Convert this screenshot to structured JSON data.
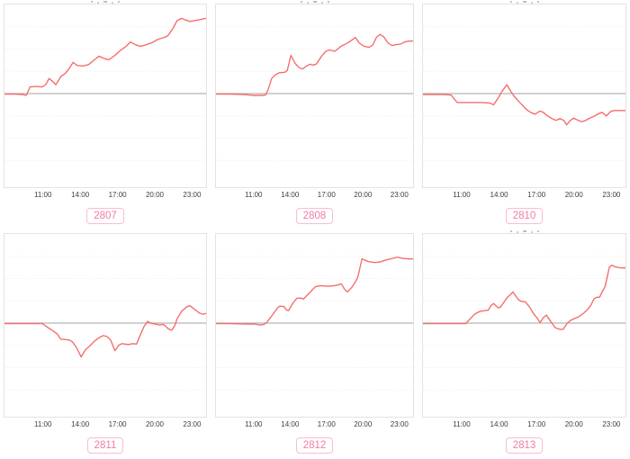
{
  "page": {
    "background": "#ffffff"
  },
  "style": {
    "line_color": "#f56d6d",
    "baseline_color": "#b3b3b3",
    "grid_color": "#ededed",
    "plot_border_color": "#e3e3e3",
    "badge_border_color": "#f9bcd4",
    "badge_text_color": "#ee7ca9",
    "tick_text_color": "#3e3e3e"
  },
  "axis": {
    "x_tick_labels": [
      "11:00",
      "14:00",
      "17:00",
      "20:00",
      "23:00"
    ],
    "x_tick_hours": [
      11,
      14,
      17,
      20,
      23
    ],
    "x_range": [
      7.83,
      24.2
    ],
    "y_range": [
      -10.5,
      10.5
    ],
    "baseline_value": 0,
    "grid_values": [
      7.5,
      5,
      2.5,
      -2.5,
      -5,
      -7.5
    ],
    "grid_visible": true
  },
  "chart_data": [
    {
      "type": "line",
      "id_label": "2807",
      "title_clipped": true,
      "points": [
        [
          7.83,
          -0.05
        ],
        [
          8.6,
          -0.05
        ],
        [
          9.3,
          -0.1
        ],
        [
          9.6,
          -0.2
        ],
        [
          9.9,
          0.75
        ],
        [
          10.4,
          0.8
        ],
        [
          10.9,
          0.75
        ],
        [
          11.2,
          1.05
        ],
        [
          11.45,
          1.7
        ],
        [
          11.75,
          1.35
        ],
        [
          12.0,
          1.0
        ],
        [
          12.4,
          1.9
        ],
        [
          12.75,
          2.25
        ],
        [
          13.05,
          2.75
        ],
        [
          13.4,
          3.5
        ],
        [
          13.75,
          3.15
        ],
        [
          14.2,
          3.1
        ],
        [
          14.65,
          3.25
        ],
        [
          15.1,
          3.75
        ],
        [
          15.5,
          4.2
        ],
        [
          15.9,
          3.95
        ],
        [
          16.3,
          3.8
        ],
        [
          16.8,
          4.3
        ],
        [
          17.25,
          4.85
        ],
        [
          17.7,
          5.3
        ],
        [
          18.05,
          5.8
        ],
        [
          18.45,
          5.5
        ],
        [
          18.85,
          5.3
        ],
        [
          19.25,
          5.45
        ],
        [
          19.8,
          5.7
        ],
        [
          20.3,
          6.1
        ],
        [
          20.8,
          6.3
        ],
        [
          21.1,
          6.5
        ],
        [
          21.5,
          7.3
        ],
        [
          21.85,
          8.2
        ],
        [
          22.2,
          8.45
        ],
        [
          22.55,
          8.25
        ],
        [
          22.9,
          8.1
        ],
        [
          23.3,
          8.2
        ],
        [
          23.7,
          8.3
        ],
        [
          24.2,
          8.45
        ]
      ]
    },
    {
      "type": "line",
      "id_label": "2808",
      "title_clipped": true,
      "points": [
        [
          7.83,
          -0.05
        ],
        [
          9.0,
          -0.05
        ],
        [
          10.2,
          -0.1
        ],
        [
          11.0,
          -0.2
        ],
        [
          11.6,
          -0.2
        ],
        [
          11.95,
          -0.15
        ],
        [
          12.15,
          0.4
        ],
        [
          12.45,
          1.7
        ],
        [
          12.75,
          2.1
        ],
        [
          13.1,
          2.35
        ],
        [
          13.55,
          2.4
        ],
        [
          13.75,
          2.6
        ],
        [
          14.05,
          4.3
        ],
        [
          14.4,
          3.4
        ],
        [
          14.7,
          2.95
        ],
        [
          15.0,
          2.75
        ],
        [
          15.35,
          3.1
        ],
        [
          15.65,
          3.3
        ],
        [
          15.9,
          3.2
        ],
        [
          16.15,
          3.3
        ],
        [
          16.6,
          4.2
        ],
        [
          16.95,
          4.75
        ],
        [
          17.25,
          4.9
        ],
        [
          17.7,
          4.75
        ],
        [
          18.2,
          5.3
        ],
        [
          18.65,
          5.6
        ],
        [
          19.0,
          5.9
        ],
        [
          19.4,
          6.3
        ],
        [
          19.75,
          5.65
        ],
        [
          20.15,
          5.3
        ],
        [
          20.55,
          5.2
        ],
        [
          20.85,
          5.45
        ],
        [
          21.15,
          6.3
        ],
        [
          21.45,
          6.65
        ],
        [
          21.75,
          6.4
        ],
        [
          22.1,
          5.7
        ],
        [
          22.45,
          5.4
        ],
        [
          22.8,
          5.5
        ],
        [
          23.15,
          5.55
        ],
        [
          23.5,
          5.8
        ],
        [
          23.9,
          5.9
        ],
        [
          24.2,
          5.9
        ]
      ]
    },
    {
      "type": "line",
      "id_label": "2810",
      "title_clipped": true,
      "points": [
        [
          7.83,
          -0.1
        ],
        [
          9.5,
          -0.1
        ],
        [
          10.1,
          -0.15
        ],
        [
          10.35,
          -0.6
        ],
        [
          10.6,
          -1.0
        ],
        [
          11.5,
          -1.0
        ],
        [
          12.6,
          -1.0
        ],
        [
          13.2,
          -1.05
        ],
        [
          13.55,
          -1.25
        ],
        [
          13.9,
          -0.5
        ],
        [
          14.2,
          0.2
        ],
        [
          14.6,
          1.0
        ],
        [
          14.95,
          0.2
        ],
        [
          15.2,
          -0.3
        ],
        [
          15.55,
          -0.85
        ],
        [
          15.9,
          -1.35
        ],
        [
          16.25,
          -1.85
        ],
        [
          16.6,
          -2.15
        ],
        [
          16.9,
          -2.3
        ],
        [
          17.3,
          -1.95
        ],
        [
          17.55,
          -2.1
        ],
        [
          17.9,
          -2.5
        ],
        [
          18.25,
          -2.8
        ],
        [
          18.6,
          -3.0
        ],
        [
          18.9,
          -2.8
        ],
        [
          19.2,
          -3.0
        ],
        [
          19.45,
          -3.5
        ],
        [
          19.75,
          -3.0
        ],
        [
          20.0,
          -2.75
        ],
        [
          20.3,
          -2.95
        ],
        [
          20.65,
          -3.15
        ],
        [
          21.0,
          -3.0
        ],
        [
          21.3,
          -2.75
        ],
        [
          21.65,
          -2.55
        ],
        [
          21.95,
          -2.3
        ],
        [
          22.3,
          -2.1
        ],
        [
          22.65,
          -2.5
        ],
        [
          23.0,
          -2.0
        ],
        [
          23.3,
          -1.9
        ],
        [
          23.8,
          -1.9
        ],
        [
          24.2,
          -1.9
        ]
      ]
    },
    {
      "type": "line",
      "id_label": "2811",
      "title_clipped": false,
      "points": [
        [
          7.83,
          -0.05
        ],
        [
          9.5,
          -0.05
        ],
        [
          10.9,
          -0.05
        ],
        [
          11.35,
          -0.5
        ],
        [
          11.7,
          -0.8
        ],
        [
          12.1,
          -1.2
        ],
        [
          12.4,
          -1.8
        ],
        [
          12.8,
          -1.85
        ],
        [
          13.1,
          -1.9
        ],
        [
          13.35,
          -2.1
        ],
        [
          13.7,
          -2.8
        ],
        [
          14.05,
          -3.8
        ],
        [
          14.4,
          -3.0
        ],
        [
          14.8,
          -2.5
        ],
        [
          15.15,
          -2.0
        ],
        [
          15.55,
          -1.6
        ],
        [
          15.85,
          -1.4
        ],
        [
          16.15,
          -1.5
        ],
        [
          16.45,
          -1.9
        ],
        [
          16.8,
          -3.1
        ],
        [
          17.1,
          -2.5
        ],
        [
          17.35,
          -2.3
        ],
        [
          17.9,
          -2.4
        ],
        [
          18.25,
          -2.3
        ],
        [
          18.55,
          -2.35
        ],
        [
          18.9,
          -1.2
        ],
        [
          19.15,
          -0.4
        ],
        [
          19.45,
          0.2
        ],
        [
          19.7,
          0.0
        ],
        [
          20.05,
          -0.1
        ],
        [
          20.4,
          -0.2
        ],
        [
          20.75,
          -0.15
        ],
        [
          21.15,
          -0.65
        ],
        [
          21.4,
          -0.8
        ],
        [
          21.65,
          -0.3
        ],
        [
          21.85,
          0.5
        ],
        [
          22.2,
          1.3
        ],
        [
          22.6,
          1.8
        ],
        [
          22.9,
          1.95
        ],
        [
          23.3,
          1.5
        ],
        [
          23.7,
          1.1
        ],
        [
          24.0,
          1.0
        ],
        [
          24.2,
          1.1
        ]
      ]
    },
    {
      "type": "line",
      "id_label": "2812",
      "title_clipped": false,
      "points": [
        [
          7.83,
          -0.05
        ],
        [
          9.0,
          -0.05
        ],
        [
          10.2,
          -0.1
        ],
        [
          11.1,
          -0.1
        ],
        [
          11.4,
          -0.2
        ],
        [
          11.8,
          -0.15
        ],
        [
          12.05,
          0.1
        ],
        [
          12.4,
          0.7
        ],
        [
          12.75,
          1.35
        ],
        [
          13.0,
          1.8
        ],
        [
          13.15,
          1.9
        ],
        [
          13.5,
          1.85
        ],
        [
          13.65,
          1.5
        ],
        [
          13.85,
          1.4
        ],
        [
          14.2,
          2.2
        ],
        [
          14.55,
          2.8
        ],
        [
          14.9,
          2.8
        ],
        [
          15.1,
          2.7
        ],
        [
          15.45,
          3.2
        ],
        [
          15.8,
          3.7
        ],
        [
          16.1,
          4.1
        ],
        [
          16.55,
          4.2
        ],
        [
          16.9,
          4.15
        ],
        [
          17.3,
          4.15
        ],
        [
          17.65,
          4.2
        ],
        [
          18.0,
          4.3
        ],
        [
          18.25,
          4.4
        ],
        [
          18.5,
          3.8
        ],
        [
          18.75,
          3.5
        ],
        [
          19.1,
          4.0
        ],
        [
          19.35,
          4.5
        ],
        [
          19.6,
          5.1
        ],
        [
          19.95,
          7.2
        ],
        [
          20.5,
          6.9
        ],
        [
          21.0,
          6.8
        ],
        [
          21.4,
          6.85
        ],
        [
          22.0,
          7.1
        ],
        [
          22.6,
          7.3
        ],
        [
          22.9,
          7.4
        ],
        [
          23.4,
          7.25
        ],
        [
          23.9,
          7.2
        ],
        [
          24.2,
          7.2
        ]
      ]
    },
    {
      "type": "line",
      "id_label": "2813",
      "title_clipped": true,
      "points": [
        [
          7.83,
          -0.05
        ],
        [
          9.5,
          -0.05
        ],
        [
          10.9,
          -0.05
        ],
        [
          11.3,
          -0.05
        ],
        [
          11.65,
          0.5
        ],
        [
          12.0,
          1.0
        ],
        [
          12.4,
          1.3
        ],
        [
          12.75,
          1.4
        ],
        [
          13.1,
          1.45
        ],
        [
          13.35,
          2.0
        ],
        [
          13.55,
          2.2
        ],
        [
          13.9,
          1.7
        ],
        [
          14.1,
          1.8
        ],
        [
          14.4,
          2.4
        ],
        [
          14.65,
          2.9
        ],
        [
          14.9,
          3.2
        ],
        [
          15.1,
          3.5
        ],
        [
          15.5,
          2.7
        ],
        [
          15.75,
          2.45
        ],
        [
          16.1,
          2.4
        ],
        [
          16.45,
          1.8
        ],
        [
          16.8,
          1.0
        ],
        [
          17.1,
          0.5
        ],
        [
          17.3,
          0.05
        ],
        [
          17.55,
          0.6
        ],
        [
          17.8,
          0.9
        ],
        [
          18.05,
          0.4
        ],
        [
          18.25,
          0.0
        ],
        [
          18.5,
          -0.5
        ],
        [
          18.9,
          -0.7
        ],
        [
          19.15,
          -0.7
        ],
        [
          19.5,
          0.0
        ],
        [
          19.75,
          0.3
        ],
        [
          20.05,
          0.5
        ],
        [
          20.4,
          0.7
        ],
        [
          20.8,
          1.1
        ],
        [
          21.05,
          1.4
        ],
        [
          21.4,
          2.0
        ],
        [
          21.65,
          2.7
        ],
        [
          21.85,
          2.9
        ],
        [
          22.1,
          2.9
        ],
        [
          22.35,
          3.6
        ],
        [
          22.55,
          4.1
        ],
        [
          22.9,
          6.3
        ],
        [
          23.1,
          6.5
        ],
        [
          23.4,
          6.3
        ],
        [
          23.8,
          6.2
        ],
        [
          24.2,
          6.2
        ]
      ]
    }
  ]
}
